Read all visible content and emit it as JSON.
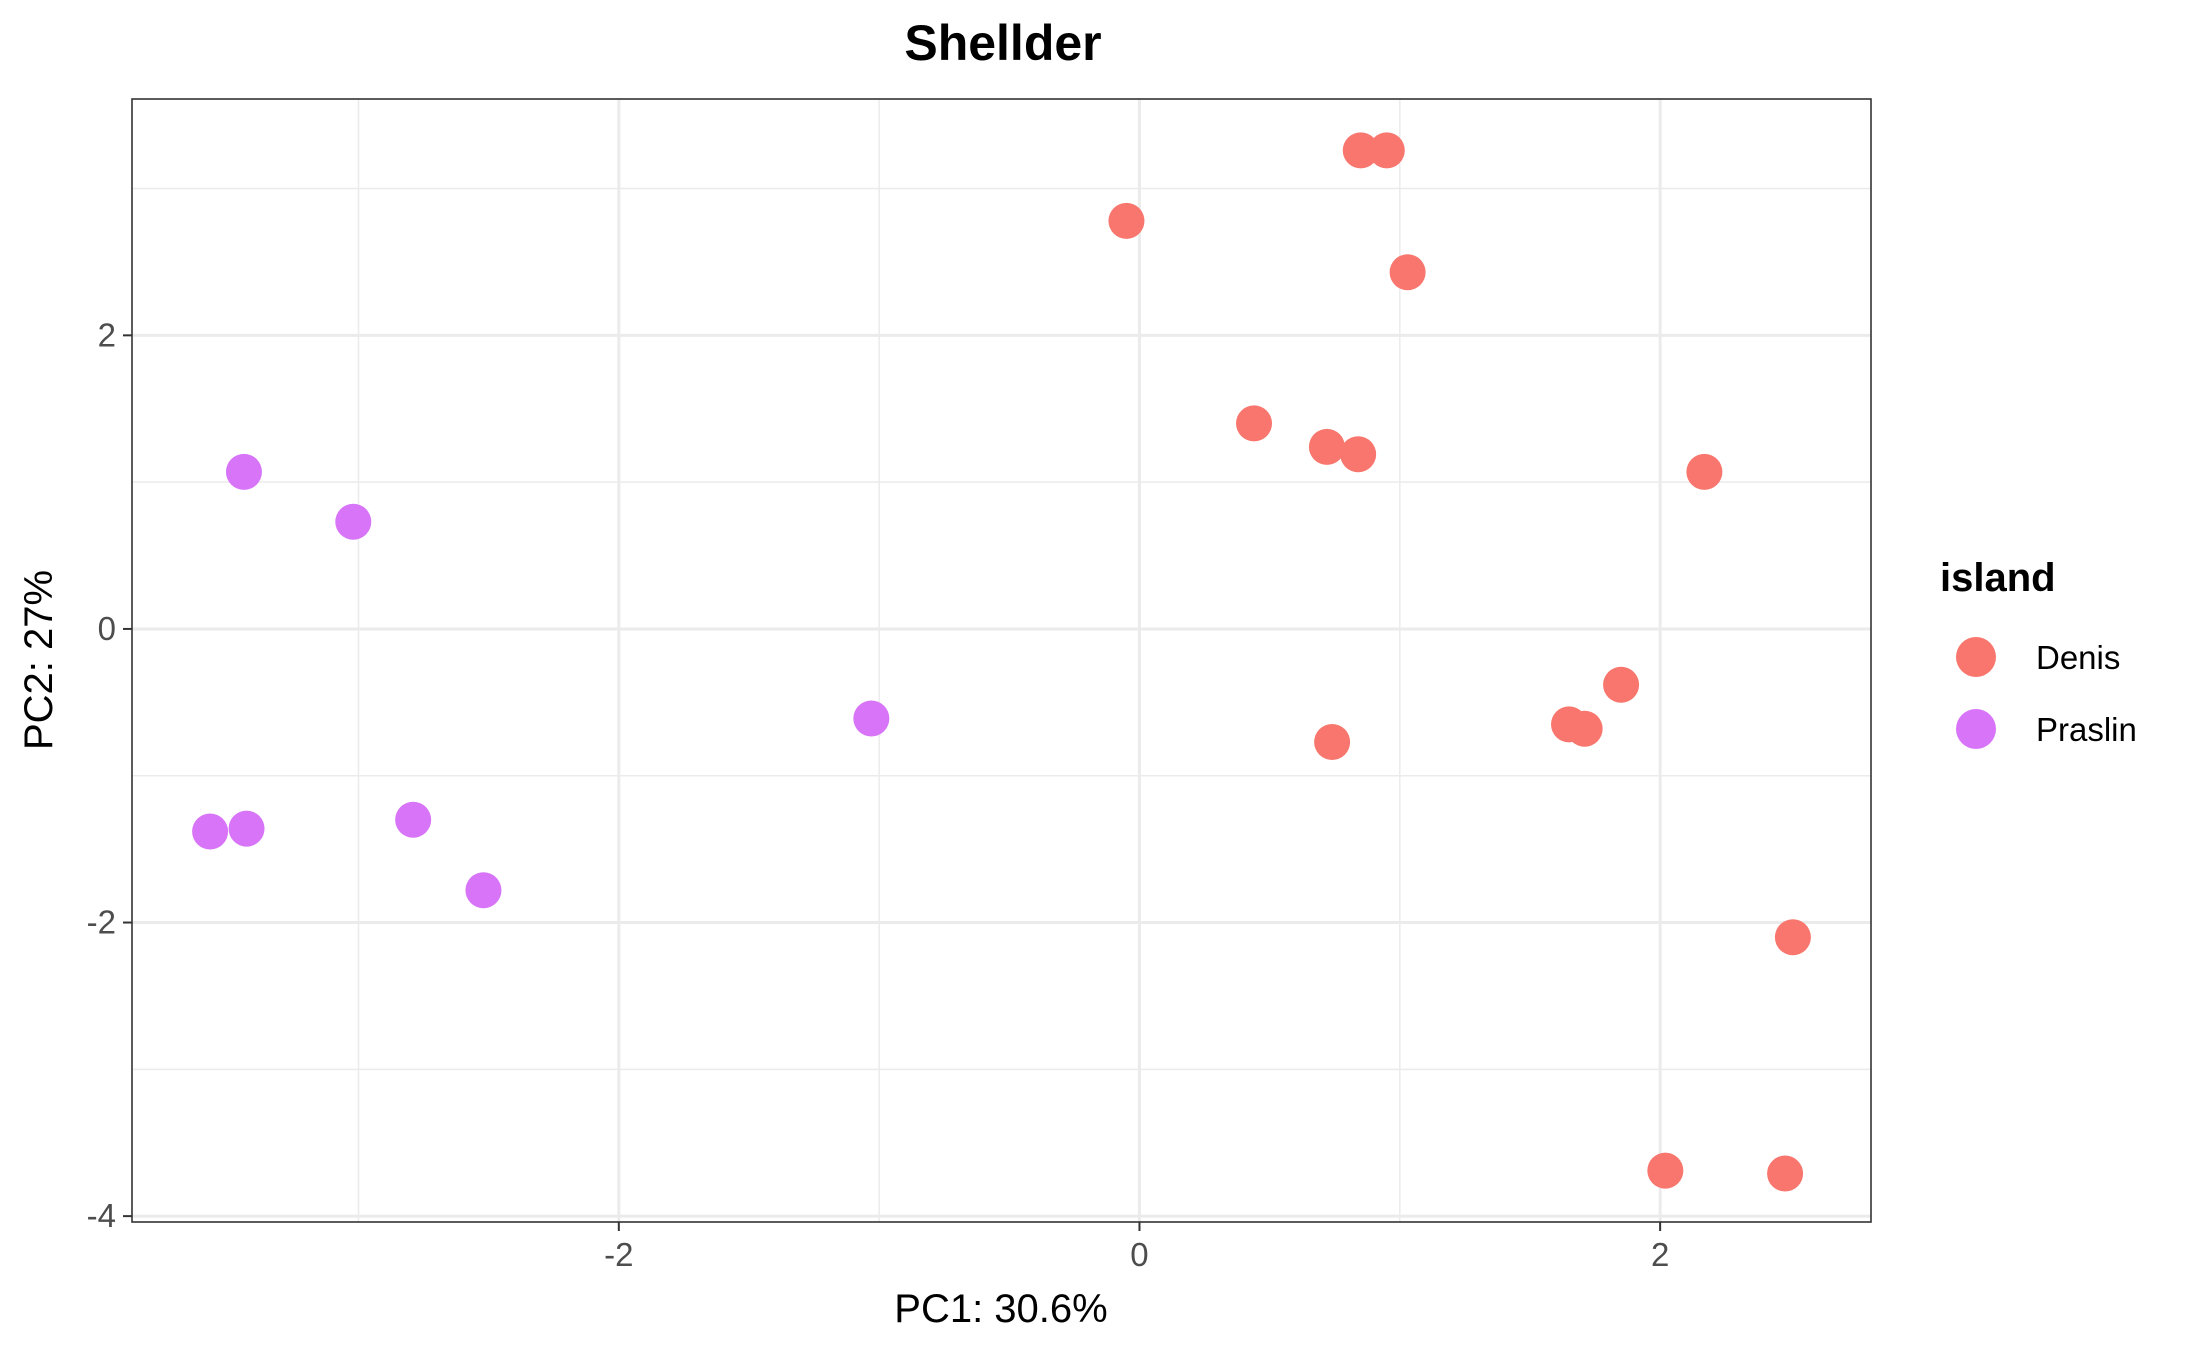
{
  "chart_data": {
    "type": "scatter",
    "title": "Shellder",
    "xlabel": "PC1: 30.6%",
    "ylabel": "PC2: 27%",
    "xlim": [
      -3.87,
      2.81
    ],
    "ylim": [
      -4.04,
      3.61
    ],
    "x_ticks": [
      -2,
      0,
      2
    ],
    "x_tick_labels": [
      "-2",
      "0",
      "2"
    ],
    "y_ticks": [
      -4,
      -2,
      0,
      2
    ],
    "y_tick_labels": [
      "-4",
      "-2",
      "0",
      "2"
    ],
    "grid": true,
    "legend": {
      "title": "island",
      "position": "right"
    },
    "series": [
      {
        "name": "Denis",
        "color": "#F8766D",
        "points": [
          {
            "x": 0.85,
            "y": 3.26
          },
          {
            "x": 0.95,
            "y": 3.26
          },
          {
            "x": -0.05,
            "y": 2.78
          },
          {
            "x": 1.03,
            "y": 2.43
          },
          {
            "x": 0.44,
            "y": 1.4
          },
          {
            "x": 0.72,
            "y": 1.24
          },
          {
            "x": 0.84,
            "y": 1.19
          },
          {
            "x": 2.17,
            "y": 1.07
          },
          {
            "x": 1.85,
            "y": -0.38
          },
          {
            "x": 1.65,
            "y": -0.65
          },
          {
            "x": 1.71,
            "y": -0.68
          },
          {
            "x": 0.74,
            "y": -0.77
          },
          {
            "x": 2.51,
            "y": -2.1
          },
          {
            "x": 2.02,
            "y": -3.69
          },
          {
            "x": 2.48,
            "y": -3.71
          }
        ]
      },
      {
        "name": "Praslin",
        "color": "#D774F7",
        "points": [
          {
            "x": -3.44,
            "y": 1.07
          },
          {
            "x": -3.02,
            "y": 0.73
          },
          {
            "x": -1.03,
            "y": -0.61
          },
          {
            "x": -3.57,
            "y": -1.38
          },
          {
            "x": -3.43,
            "y": -1.36
          },
          {
            "x": -2.79,
            "y": -1.3
          },
          {
            "x": -2.52,
            "y": -1.78
          }
        ]
      }
    ]
  }
}
